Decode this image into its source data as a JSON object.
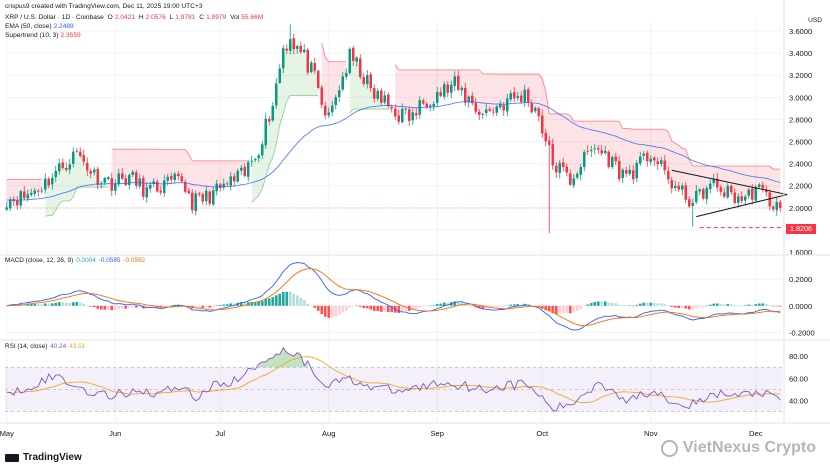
{
  "header": {
    "creator_line": "crispus9 created with TradingView.com, Dec 11, 2025 19:00 UTC+3",
    "symbol": "XRP / U.S. Dollar · 1D · Coinbase",
    "ohlc": {
      "open": {
        "label": "O",
        "value": "2.0421"
      },
      "high": {
        "label": "H",
        "value": "2.0576"
      },
      "low": {
        "label": "L",
        "value": "1.9781"
      },
      "close": {
        "label": "C",
        "value": "1.9979"
      },
      "volume": {
        "label": "Vol",
        "value": "55.66M"
      }
    },
    "ema": {
      "label": "EMA (50, close)",
      "value": "2.2489"
    },
    "supertrend": {
      "label": "Supertrend (10, 3)",
      "value": "2.3559"
    }
  },
  "currency": "USD",
  "price_tag": {
    "value": "1.8206",
    "color": "#f23645"
  },
  "macd_legend": {
    "label": "MACD (close, 12, 26, 9)",
    "v1": "0.0004",
    "v2": "-0.0585",
    "v3": "-0.0592"
  },
  "rsi_legend": {
    "label": "RSI (14, close)",
    "v1": "40.24",
    "v2": "43.51"
  },
  "brand": "TradingView",
  "watermark": "VietNexus Crypto",
  "colors": {
    "up": "#089981",
    "down": "#f23645",
    "ema": "#2962ff",
    "supertrend_down": "#f23645",
    "supertrend_up": "#4caf50",
    "macd": "#2962ff",
    "signal": "#ff6d00",
    "rsi": "#7e57c2",
    "rsi_ma": "#f5a623"
  },
  "chart_data": [
    {
      "type": "candlestick",
      "name": "price",
      "x_labels": [
        "May",
        "Jun",
        "Jul",
        "Aug",
        "Sep",
        "Oct",
        "Nov",
        "Dec"
      ],
      "x_label_days": [
        0,
        31,
        61,
        92,
        123,
        153,
        184,
        214
      ],
      "y_ticks": [
        "1.6000",
        "1.8000",
        "2.0000",
        "2.2000",
        "2.4000",
        "2.6000",
        "2.8000",
        "3.0000",
        "3.2000",
        "3.4000",
        "3.6000"
      ],
      "y_range": [
        1.6,
        3.7
      ],
      "close_anchors": [
        [
          0,
          2.08
        ],
        [
          5,
          2.1
        ],
        [
          10,
          2.2
        ],
        [
          15,
          2.35
        ],
        [
          20,
          2.5
        ],
        [
          25,
          2.3
        ],
        [
          30,
          2.23
        ],
        [
          35,
          2.28
        ],
        [
          40,
          2.15
        ],
        [
          45,
          2.2
        ],
        [
          50,
          2.25
        ],
        [
          53,
          2.05
        ],
        [
          56,
          2.08
        ],
        [
          60,
          2.15
        ],
        [
          65,
          2.25
        ],
        [
          68,
          2.3
        ],
        [
          72,
          2.55
        ],
        [
          76,
          2.95
        ],
        [
          79,
          3.45
        ],
        [
          81,
          3.55
        ],
        [
          84,
          3.4
        ],
        [
          86,
          3.3
        ],
        [
          88,
          3.15
        ],
        [
          90,
          2.92
        ],
        [
          92,
          2.8
        ],
        [
          95,
          3.1
        ],
        [
          98,
          3.35
        ],
        [
          101,
          3.25
        ],
        [
          104,
          3.05
        ],
        [
          108,
          2.95
        ],
        [
          112,
          2.85
        ],
        [
          116,
          2.82
        ],
        [
          120,
          3.0
        ],
        [
          124,
          3.05
        ],
        [
          128,
          3.1
        ],
        [
          132,
          2.98
        ],
        [
          136,
          2.85
        ],
        [
          140,
          2.92
        ],
        [
          144,
          2.98
        ],
        [
          148,
          3.02
        ],
        [
          152,
          2.85
        ],
        [
          154,
          2.6
        ],
        [
          156,
          2.4
        ],
        [
          158,
          2.35
        ],
        [
          161,
          2.25
        ],
        [
          164,
          2.4
        ],
        [
          168,
          2.55
        ],
        [
          172,
          2.45
        ],
        [
          176,
          2.3
        ],
        [
          180,
          2.35
        ],
        [
          184,
          2.5
        ],
        [
          188,
          2.3
        ],
        [
          192,
          2.15
        ],
        [
          196,
          2.05
        ],
        [
          199,
          2.15
        ],
        [
          202,
          2.2
        ],
        [
          205,
          2.15
        ],
        [
          208,
          2.1
        ],
        [
          211,
          2.08
        ],
        [
          214,
          2.18
        ],
        [
          217,
          2.1
        ],
        [
          219,
          2.03
        ],
        [
          221,
          2.0
        ]
      ],
      "last_close": 1.9979,
      "price_level": 1.8206
    },
    {
      "type": "line",
      "name": "MACD (close, 12, 26, 9)",
      "y_ticks": [
        "0.2000",
        "0.0000",
        "-0.2000"
      ],
      "y_range": [
        -0.22,
        0.36
      ]
    },
    {
      "type": "line",
      "name": "RSI (14, close)",
      "y_ticks": [
        "80.00",
        "60.00",
        "40.00"
      ],
      "y_range": [
        24,
        92
      ],
      "rsi_anchors": [
        [
          0,
          48
        ],
        [
          4,
          50
        ],
        [
          8,
          55
        ],
        [
          12,
          60
        ],
        [
          15,
          62
        ],
        [
          18,
          55
        ],
        [
          22,
          50
        ],
        [
          26,
          46
        ],
        [
          30,
          44
        ],
        [
          34,
          47
        ],
        [
          38,
          50
        ],
        [
          42,
          46
        ],
        [
          46,
          49
        ],
        [
          50,
          54
        ],
        [
          54,
          42
        ],
        [
          57,
          50
        ],
        [
          62,
          56
        ],
        [
          66,
          58
        ],
        [
          70,
          68
        ],
        [
          74,
          78
        ],
        [
          77,
          83
        ],
        [
          80,
          86
        ],
        [
          83,
          82
        ],
        [
          86,
          72
        ],
        [
          90,
          58
        ],
        [
          93,
          54
        ],
        [
          96,
          60
        ],
        [
          100,
          58
        ],
        [
          104,
          52
        ],
        [
          108,
          50
        ],
        [
          112,
          48
        ],
        [
          118,
          52
        ],
        [
          124,
          56
        ],
        [
          130,
          54
        ],
        [
          136,
          50
        ],
        [
          142,
          53
        ],
        [
          148,
          55
        ],
        [
          152,
          46
        ],
        [
          154,
          36
        ],
        [
          157,
          32
        ],
        [
          161,
          36
        ],
        [
          165,
          46
        ],
        [
          169,
          56
        ],
        [
          173,
          50
        ],
        [
          177,
          40
        ],
        [
          181,
          44
        ],
        [
          185,
          50
        ],
        [
          189,
          42
        ],
        [
          193,
          37
        ],
        [
          197,
          36
        ],
        [
          200,
          42
        ],
        [
          204,
          46
        ],
        [
          208,
          44
        ],
        [
          212,
          46
        ],
        [
          216,
          47
        ],
        [
          219,
          42
        ],
        [
          221,
          40.24
        ]
      ]
    }
  ]
}
